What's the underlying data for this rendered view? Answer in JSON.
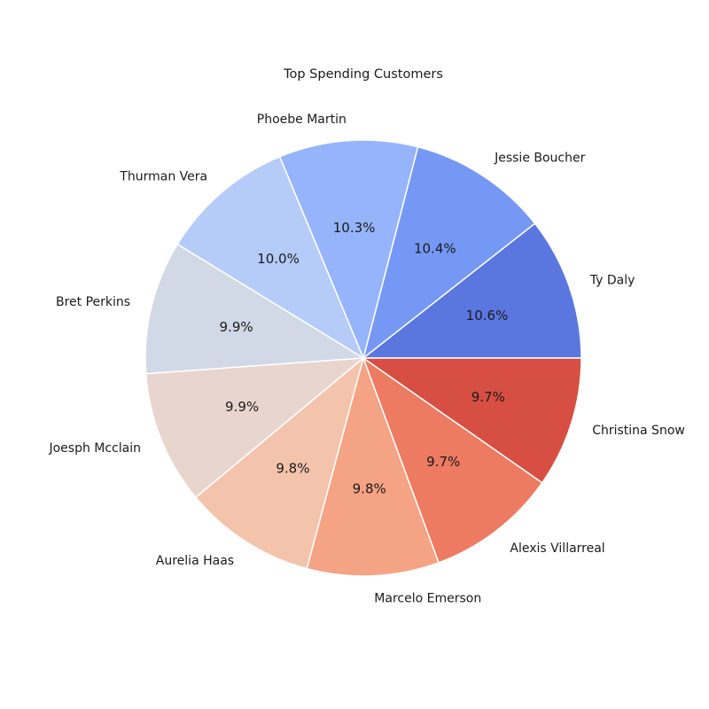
{
  "chart_data": {
    "type": "pie",
    "title": "Top Spending Customers",
    "start_angle_deg": 0,
    "direction": "counterclockwise",
    "slices": [
      {
        "label": "Ty Daly",
        "value": 10.6,
        "pct_label": "10.6%",
        "color": "#5a77e0"
      },
      {
        "label": "Jessie Boucher",
        "value": 10.4,
        "pct_label": "10.4%",
        "color": "#7598f5"
      },
      {
        "label": "Phoebe Martin",
        "value": 10.3,
        "pct_label": "10.3%",
        "color": "#96b4fb"
      },
      {
        "label": "Thurman Vera",
        "value": 10.0,
        "pct_label": "10.0%",
        "color": "#b5cbf8"
      },
      {
        "label": "Bret Perkins",
        "value": 9.9,
        "pct_label": "9.9%",
        "color": "#d1d9e6"
      },
      {
        "label": "Joesph Mcclain",
        "value": 9.9,
        "pct_label": "9.9%",
        "color": "#e8d6ce"
      },
      {
        "label": "Aurelia Haas",
        "value": 9.8,
        "pct_label": "9.8%",
        "color": "#f4c3ab"
      },
      {
        "label": "Marcelo Emerson",
        "value": 9.8,
        "pct_label": "9.8%",
        "color": "#f5a385"
      },
      {
        "label": "Alexis Villarreal",
        "value": 9.7,
        "pct_label": "9.7%",
        "color": "#ec7b62"
      },
      {
        "label": "Christina Snow",
        "value": 9.7,
        "pct_label": "9.7%",
        "color": "#d64f42"
      }
    ]
  }
}
